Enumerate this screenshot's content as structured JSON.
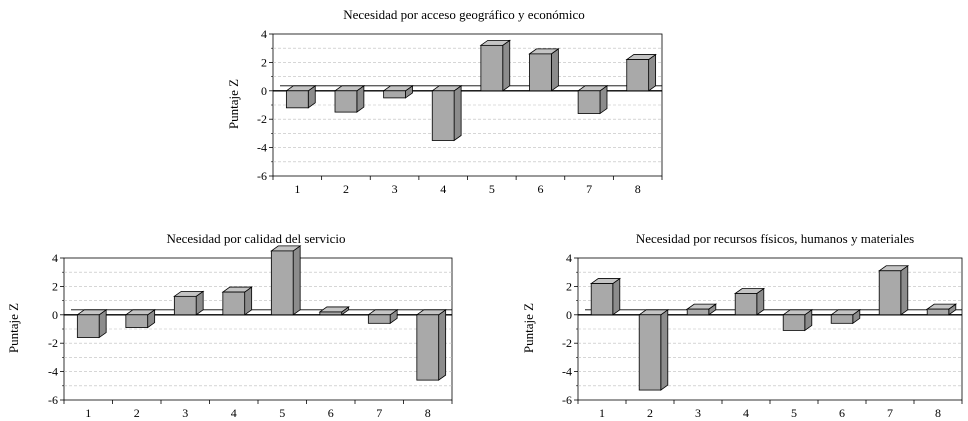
{
  "chart_data": [
    {
      "type": "bar",
      "title": "Necesidad por acceso geográfico y económico",
      "ylabel": "Puntaje Z",
      "xlabel": "",
      "categories": [
        "1",
        "2",
        "3",
        "4",
        "5",
        "6",
        "7",
        "8"
      ],
      "values": [
        -1.2,
        -1.5,
        -0.5,
        -3.5,
        3.2,
        2.6,
        -1.6,
        2.2
      ],
      "ylim": [
        -6,
        4
      ],
      "yticks": [
        "4",
        "2",
        "0",
        "-2",
        "-4",
        "-6"
      ],
      "grid": true,
      "bar_color": "#a9a9a9"
    },
    {
      "type": "bar",
      "title": "Necesidad por calidad del servicio",
      "ylabel": "Puntaje Z",
      "xlabel": "",
      "categories": [
        "1",
        "2",
        "3",
        "4",
        "5",
        "6",
        "7",
        "8"
      ],
      "values": [
        -1.6,
        -0.9,
        1.3,
        1.6,
        4.5,
        0.2,
        -0.6,
        -4.6
      ],
      "ylim": [
        -6,
        4
      ],
      "yticks": [
        "4",
        "2",
        "0",
        "-2",
        "-4",
        "-6"
      ],
      "grid": true,
      "bar_color": "#a9a9a9"
    },
    {
      "type": "bar",
      "title": "Necesidad por recursos físicos, humanos y materiales",
      "ylabel": "Puntaje Z",
      "xlabel": "",
      "categories": [
        "1",
        "2",
        "3",
        "4",
        "5",
        "6",
        "7",
        "8"
      ],
      "values": [
        2.2,
        -5.3,
        0.4,
        1.5,
        -1.1,
        -0.6,
        3.1,
        0.4
      ],
      "ylim": [
        -6,
        4
      ],
      "yticks": [
        "4",
        "2",
        "0",
        "-2",
        "-4",
        "-6"
      ],
      "grid": true,
      "bar_color": "#a9a9a9"
    }
  ]
}
